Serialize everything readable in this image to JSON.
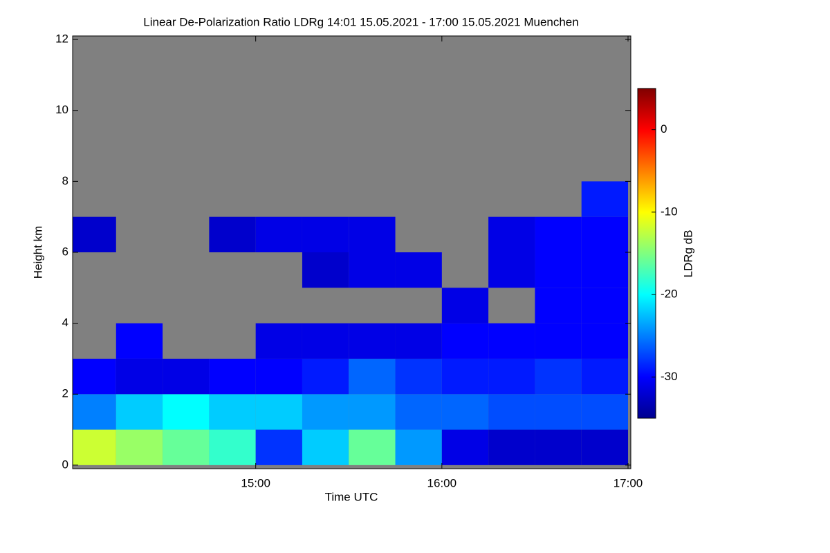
{
  "chart_data": {
    "type": "heatmap",
    "title": "Linear De-Polarization Ratio LDRg   14:01 15.05.2021 - 17:00 15.05.2021 Muenchen",
    "xlabel": "Time UTC",
    "ylabel": "Height km",
    "colorbar_label": "LDRg dB",
    "xlim": [
      14.0167,
      17.0
    ],
    "xticks": [
      {
        "value": 15,
        "label": "15:00"
      },
      {
        "value": 16,
        "label": "16:00"
      },
      {
        "value": 17,
        "label": "17:00"
      }
    ],
    "ylim": [
      -0.1,
      12.1
    ],
    "yticks": [
      0,
      2,
      4,
      6,
      8,
      10,
      12
    ],
    "clim": [
      -35,
      5
    ],
    "cticks": [
      -30,
      -20,
      -10,
      0
    ],
    "colormap": "jet",
    "missing_color": "#808080",
    "x": [
      14.125,
      14.375,
      14.625,
      14.875,
      15.125,
      15.375,
      15.625,
      15.875,
      16.125,
      16.375,
      16.625,
      16.875
    ],
    "x_step": 0.25,
    "y": [
      0.5,
      1.5,
      2.5,
      3.5,
      4.5,
      5.5,
      6.5,
      7.5,
      8.5,
      9.5,
      10.5,
      11.5
    ],
    "y_step": 1,
    "z": [
      [
        -12,
        -14,
        -16,
        -18,
        -28,
        -22,
        -16,
        -24,
        -31,
        -32,
        -32,
        -32
      ],
      [
        -25,
        -22,
        -20,
        -22,
        -22,
        -24,
        -24,
        -26,
        -26,
        -27,
        -27,
        -27
      ],
      [
        -30,
        -31,
        -31,
        -30,
        -30,
        -29,
        -26,
        -28,
        -29,
        -29,
        -28,
        -29
      ],
      [
        null,
        -30,
        null,
        null,
        -31,
        -31,
        -31,
        -31,
        -30,
        -30,
        -30,
        -30
      ],
      [
        null,
        null,
        null,
        null,
        null,
        null,
        null,
        null,
        -31,
        null,
        -30,
        -30
      ],
      [
        null,
        null,
        null,
        null,
        null,
        -32,
        -31,
        -31,
        null,
        -31,
        -30,
        -30
      ],
      [
        -32,
        null,
        null,
        -32,
        -31,
        -31,
        -31,
        null,
        null,
        -31,
        -30,
        -30
      ],
      [
        null,
        null,
        null,
        null,
        null,
        null,
        null,
        null,
        null,
        null,
        null,
        -29
      ],
      [
        null,
        null,
        null,
        null,
        null,
        null,
        null,
        null,
        null,
        null,
        null,
        null
      ],
      [
        null,
        null,
        null,
        null,
        null,
        null,
        null,
        null,
        null,
        null,
        null,
        null
      ],
      [
        null,
        null,
        null,
        null,
        null,
        null,
        null,
        null,
        null,
        null,
        null,
        null
      ],
      [
        null,
        null,
        null,
        null,
        null,
        null,
        null,
        null,
        null,
        null,
        null,
        null
      ]
    ]
  }
}
